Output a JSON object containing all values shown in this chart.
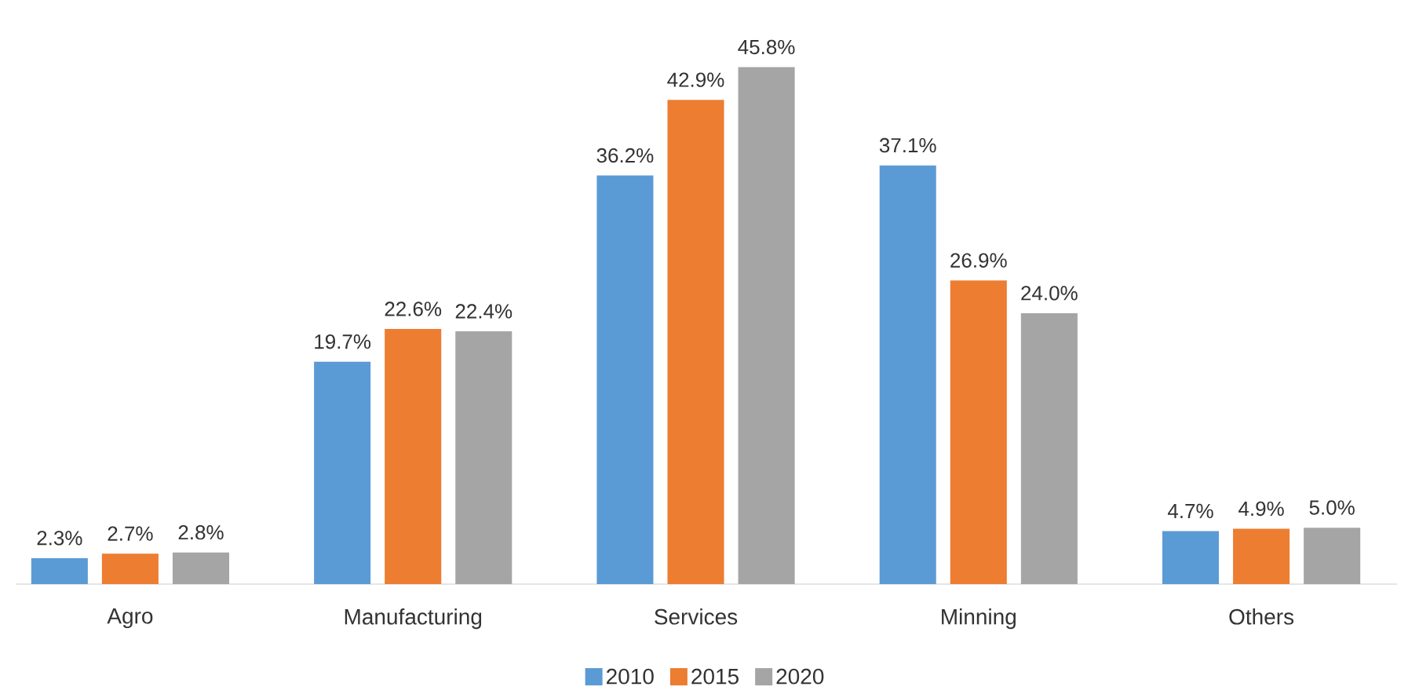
{
  "chart_data": {
    "type": "bar",
    "categories": [
      "Agro",
      "Manufacturing",
      "Services",
      "Minning",
      "Others"
    ],
    "series": [
      {
        "name": "2010",
        "color": "#5b9bd5",
        "values": [
          2.3,
          19.7,
          36.2,
          37.1,
          4.7
        ],
        "value_labels": [
          "2.3%",
          "19.7%",
          "36.2%",
          "37.1%",
          "4.7%"
        ]
      },
      {
        "name": "2015",
        "color": "#ed7d31",
        "values": [
          2.7,
          22.6,
          42.9,
          26.9,
          4.9
        ],
        "value_labels": [
          "2.7%",
          "22.6%",
          "42.9%",
          "26.9%",
          "4.9%"
        ]
      },
      {
        "name": "2020",
        "color": "#a5a5a5",
        "values": [
          2.8,
          22.4,
          45.8,
          24.0,
          5.0
        ],
        "value_labels": [
          "2.8%",
          "22.4%",
          "45.8%",
          "24.0%",
          "5.0%"
        ]
      }
    ],
    "legend": "bottom"
  }
}
